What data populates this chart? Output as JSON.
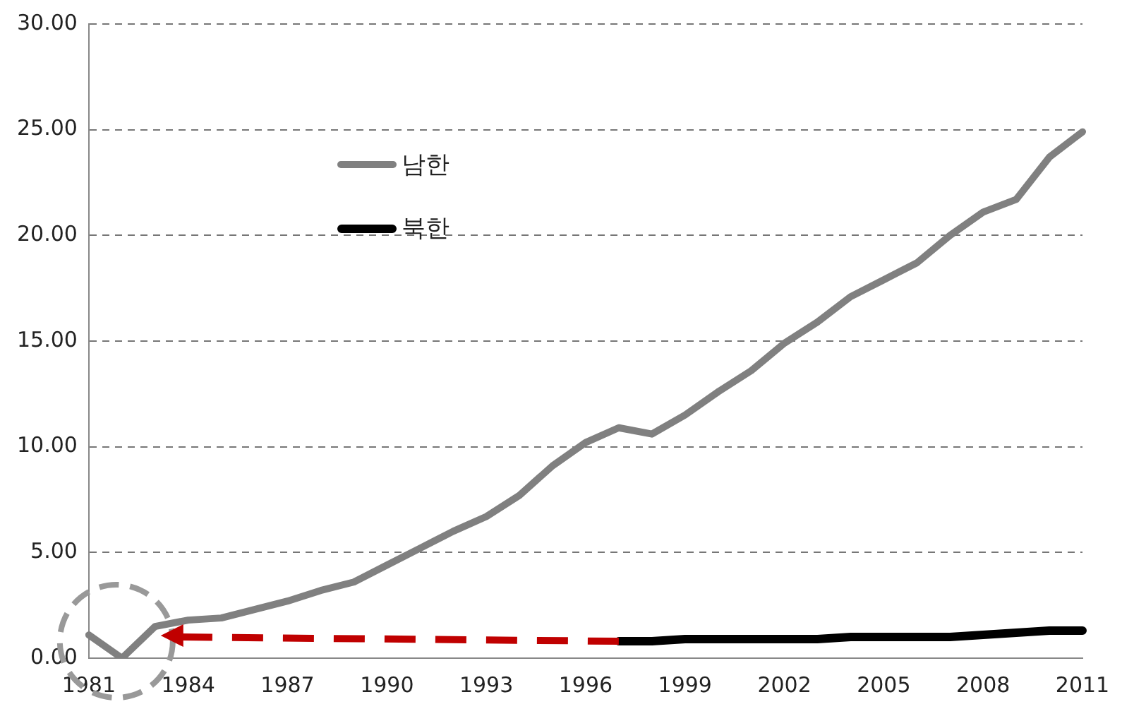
{
  "chart_data": {
    "type": "line",
    "categories": [
      "1981",
      null,
      null,
      "1984",
      null,
      null,
      "1987",
      null,
      null,
      "1990",
      null,
      null,
      "1993",
      null,
      null,
      "1996",
      null,
      null,
      "1999",
      null,
      null,
      "2002",
      null,
      null,
      "2005",
      null,
      null,
      "2008",
      null,
      null,
      "2011"
    ],
    "series": [
      {
        "name": "남한",
        "color": "#808080",
        "values": [
          1.1,
          0.0,
          1.5,
          1.8,
          1.9,
          2.3,
          2.7,
          3.2,
          3.6,
          4.4,
          5.2,
          6.0,
          6.7,
          7.7,
          9.1,
          10.2,
          10.9,
          10.6,
          11.5,
          12.6,
          13.6,
          14.9,
          15.9,
          17.1,
          17.9,
          18.7,
          20.0,
          21.1,
          21.7,
          23.7,
          24.9
        ]
      },
      {
        "name": "북한",
        "color": "#000000",
        "values": [
          null,
          null,
          null,
          null,
          null,
          null,
          null,
          null,
          null,
          null,
          null,
          null,
          null,
          null,
          null,
          null,
          0.8,
          0.8,
          0.9,
          0.9,
          0.9,
          0.9,
          0.9,
          1.0,
          1.0,
          1.0,
          1.0,
          1.1,
          1.2,
          1.3,
          1.3
        ]
      }
    ],
    "ylim": [
      0,
      30
    ],
    "yticks": [
      {
        "value": 0,
        "label": "0.00"
      },
      {
        "value": 5,
        "label": "5.00"
      },
      {
        "value": 10,
        "label": "10.00"
      },
      {
        "value": 15,
        "label": "15.00"
      },
      {
        "value": 20,
        "label": "20.00"
      },
      {
        "value": 25,
        "label": "25.00"
      },
      {
        "value": 30,
        "label": "30.00"
      }
    ],
    "grid": "y",
    "legend": "top left",
    "marker": "none",
    "line_style": "solid"
  }
}
